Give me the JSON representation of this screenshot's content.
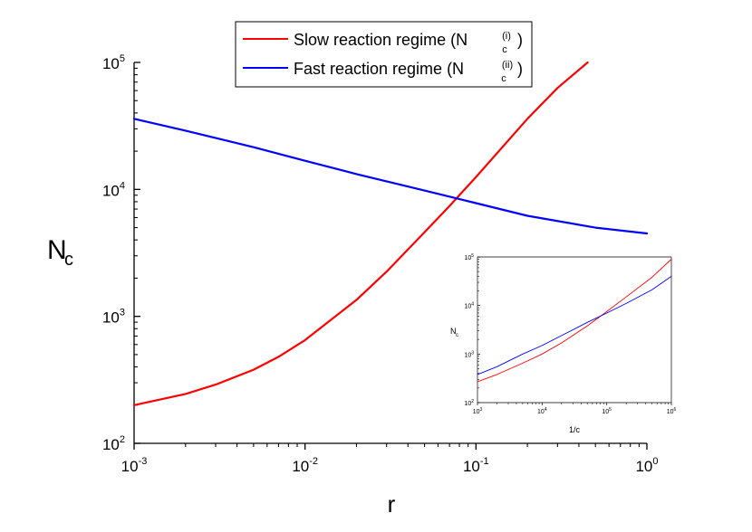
{
  "chart_data": [
    {
      "type": "line",
      "xscale": "log",
      "yscale": "log",
      "xlim": [
        0.001,
        1
      ],
      "ylim": [
        100,
        100000
      ],
      "xlabel": "r",
      "ylabel_main": "N",
      "ylabel_sub": "c",
      "xticks": [
        {
          "base": "10",
          "exp": "-3",
          "value": 0.001
        },
        {
          "base": "10",
          "exp": "-2",
          "value": 0.01
        },
        {
          "base": "10",
          "exp": "-1",
          "value": 0.1
        },
        {
          "base": "10",
          "exp": "0",
          "value": 1
        }
      ],
      "yticks": [
        {
          "base": "10",
          "exp": "2",
          "value": 100
        },
        {
          "base": "10",
          "exp": "3",
          "value": 1000
        },
        {
          "base": "10",
          "exp": "4",
          "value": 10000
        },
        {
          "base": "10",
          "exp": "5",
          "value": 100000
        }
      ],
      "legend_position": "top-center",
      "series": [
        {
          "name": "Slow reaction regime (N",
          "name_sub": "c",
          "name_sup": "(i)",
          "name_end": ")",
          "color": "#ff0000",
          "x": [
            0.001,
            0.002,
            0.003,
            0.005,
            0.007,
            0.01,
            0.02,
            0.03,
            0.05,
            0.07,
            0.1,
            0.2,
            0.3,
            0.45
          ],
          "y": [
            200,
            245,
            290,
            380,
            480,
            650,
            1350,
            2250,
            4600,
            7400,
            12500,
            36000,
            63000,
            100000
          ]
        },
        {
          "name": "Fast reaction regime (N",
          "name_sub": "c",
          "name_sup": "(ii)",
          "name_end": ")",
          "color": "#0000ff",
          "x": [
            0.001,
            0.002,
            0.005,
            0.01,
            0.02,
            0.05,
            0.1,
            0.2,
            0.5,
            1
          ],
          "y": [
            36000,
            29000,
            21500,
            16800,
            13200,
            9800,
            7800,
            6200,
            5000,
            4500
          ]
        }
      ]
    },
    {
      "type": "line",
      "role": "inset",
      "xscale": "log",
      "yscale": "log",
      "xlim": [
        1000,
        1000000
      ],
      "ylim": [
        100,
        100000
      ],
      "xlabel": "1/c",
      "ylabel_main": "N",
      "ylabel_sub": "c",
      "xticks": [
        {
          "base": "10",
          "exp": "3",
          "value": 1000
        },
        {
          "base": "10",
          "exp": "4",
          "value": 10000
        },
        {
          "base": "10",
          "exp": "5",
          "value": 100000
        },
        {
          "base": "10",
          "exp": "6",
          "value": 1000000
        }
      ],
      "yticks": [
        {
          "base": "10",
          "exp": "2",
          "value": 100
        },
        {
          "base": "10",
          "exp": "3",
          "value": 1000
        },
        {
          "base": "10",
          "exp": "4",
          "value": 10000
        },
        {
          "base": "10",
          "exp": "5",
          "value": 100000
        }
      ],
      "series": [
        {
          "color": "#ff0000",
          "x": [
            1000,
            2000,
            5000,
            10000,
            20000,
            50000,
            100000,
            200000,
            500000,
            1000000
          ],
          "y": [
            270,
            380,
            650,
            1000,
            1700,
            3800,
            7500,
            15000,
            38000,
            90000
          ]
        },
        {
          "color": "#0000ff",
          "x": [
            1000,
            2000,
            5000,
            10000,
            20000,
            50000,
            100000,
            200000,
            500000,
            1000000
          ],
          "y": [
            380,
            550,
            1000,
            1500,
            2400,
            4500,
            7000,
            11000,
            21000,
            40000
          ]
        }
      ]
    }
  ]
}
